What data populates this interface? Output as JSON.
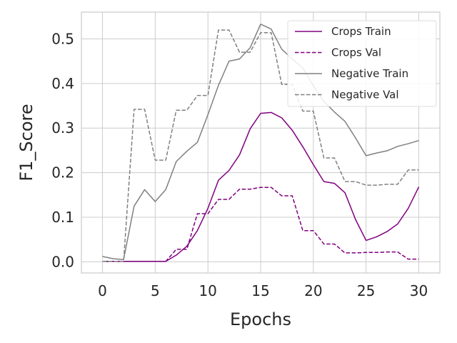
{
  "chart_data": {
    "type": "line",
    "xlabel": "Epochs",
    "ylabel": "F1_Score",
    "xlim": [
      -2,
      32
    ],
    "ylim": [
      -0.025,
      0.56
    ],
    "xticks": [
      0,
      5,
      10,
      15,
      20,
      25,
      30
    ],
    "yticks": [
      0.0,
      0.1,
      0.2,
      0.3,
      0.4,
      0.5
    ],
    "grid": true,
    "legend_position": "top-right",
    "x": [
      0,
      1,
      2,
      3,
      4,
      5,
      6,
      7,
      8,
      9,
      10,
      11,
      12,
      13,
      14,
      15,
      16,
      17,
      18,
      19,
      20,
      21,
      22,
      23,
      24,
      25,
      26,
      27,
      28,
      29,
      30
    ],
    "series": [
      {
        "name": "Crops Train",
        "color": "#800080",
        "dash": "solid",
        "values": [
          0.001,
          0.001,
          0.001,
          0.001,
          0.001,
          0.001,
          0.001,
          0.015,
          0.035,
          0.07,
          0.12,
          0.183,
          0.205,
          0.24,
          0.298,
          0.333,
          0.335,
          0.323,
          0.295,
          0.258,
          0.218,
          0.18,
          0.176,
          0.155,
          0.095,
          0.048,
          0.056,
          0.068,
          0.085,
          0.12,
          0.168
        ]
      },
      {
        "name": "Crops Val",
        "color": "#800080",
        "dash": "dashed",
        "values": [
          0.001,
          0.001,
          0.001,
          0.001,
          0.001,
          0.001,
          0.001,
          0.028,
          0.028,
          0.108,
          0.108,
          0.14,
          0.14,
          0.163,
          0.163,
          0.167,
          0.167,
          0.148,
          0.148,
          0.07,
          0.07,
          0.04,
          0.04,
          0.02,
          0.02,
          0.021,
          0.021,
          0.022,
          0.022,
          0.006,
          0.006
        ]
      },
      {
        "name": "Negative Train",
        "color": "#808080",
        "dash": "solid",
        "values": [
          0.012,
          0.007,
          0.005,
          0.125,
          0.162,
          0.135,
          0.162,
          0.225,
          0.248,
          0.268,
          0.33,
          0.396,
          0.45,
          0.455,
          0.48,
          0.533,
          0.522,
          0.477,
          0.455,
          0.435,
          0.395,
          0.36,
          0.336,
          0.315,
          0.278,
          0.238,
          0.244,
          0.249,
          0.259,
          0.265,
          0.272
        ]
      },
      {
        "name": "Negative Val",
        "color": "#808080",
        "dash": "dashed",
        "values": [
          0.001,
          0.001,
          0.001,
          0.342,
          0.342,
          0.228,
          0.228,
          0.34,
          0.34,
          0.373,
          0.373,
          0.52,
          0.52,
          0.47,
          0.47,
          0.514,
          0.514,
          0.398,
          0.398,
          0.338,
          0.338,
          0.233,
          0.233,
          0.18,
          0.18,
          0.172,
          0.172,
          0.174,
          0.174,
          0.206,
          0.206
        ]
      }
    ]
  }
}
